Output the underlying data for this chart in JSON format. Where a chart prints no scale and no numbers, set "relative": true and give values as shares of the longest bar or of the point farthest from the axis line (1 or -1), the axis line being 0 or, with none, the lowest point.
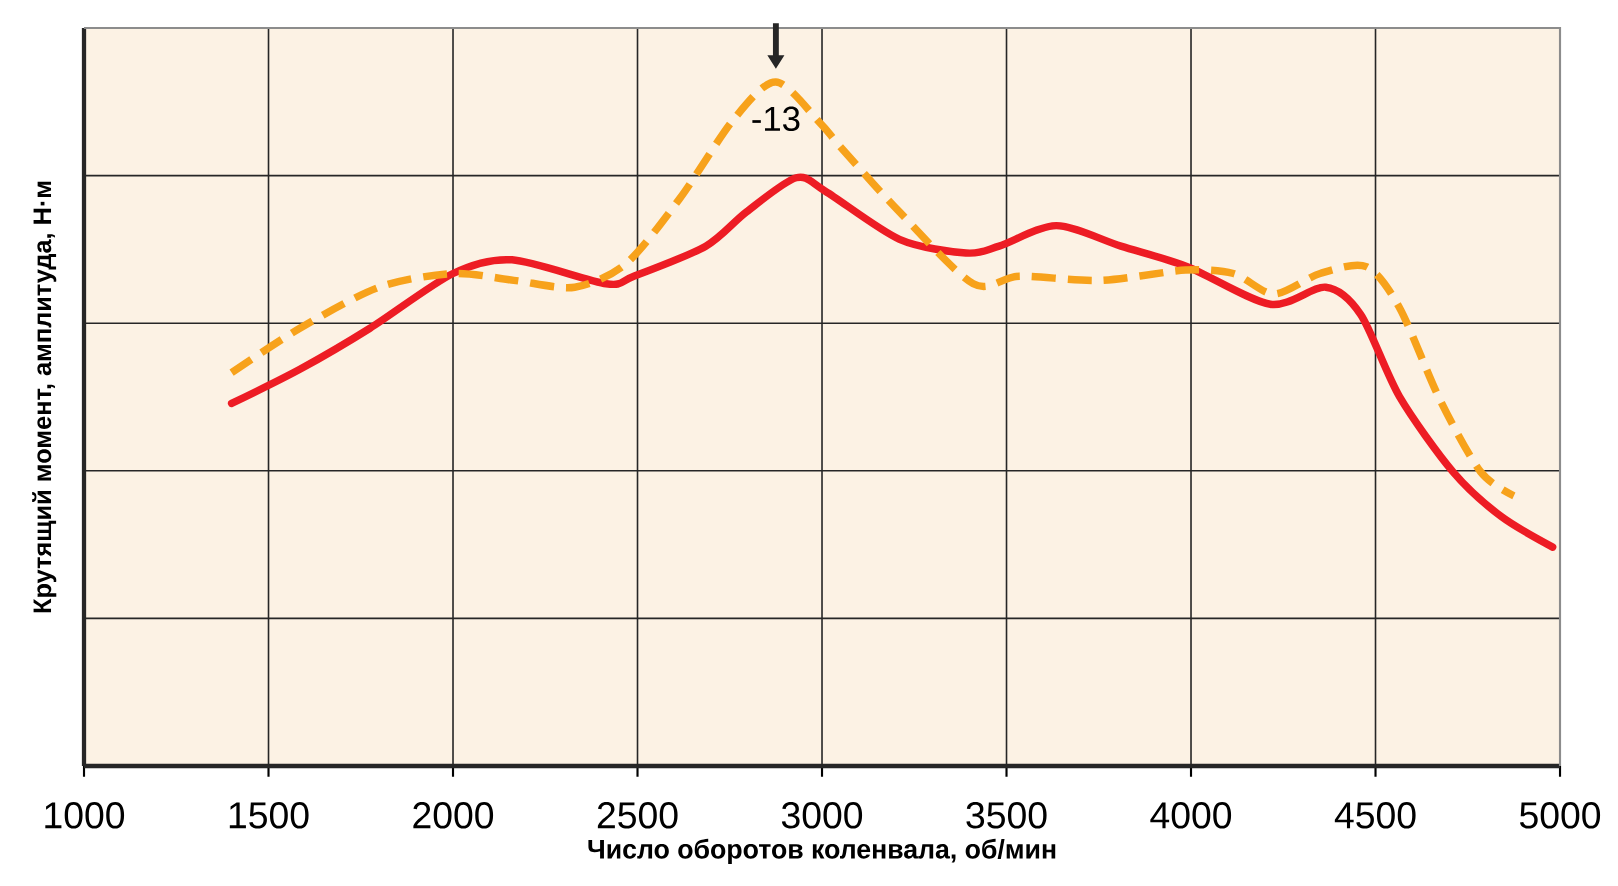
{
  "chart_data": {
    "type": "line",
    "relative": true,
    "xlabel": "Число оборотов коленвала, об/мин",
    "ylabel": "Крутящий момент, амплитуда, Н·м",
    "xlim": [
      1000,
      5000
    ],
    "xticks": [
      1000,
      1500,
      2000,
      2500,
      3000,
      3500,
      4000,
      4500,
      5000
    ],
    "grid": true,
    "tick_labels": "x",
    "marker": "none",
    "annotations": [
      {
        "text": "-13",
        "x": 2875,
        "y": 1.0
      }
    ],
    "series": [
      {
        "color": "#ed1c24",
        "line_style": "solid",
        "x": [
          1400,
          1585,
          1775,
          2000,
          2160,
          2415,
          2490,
          2685,
          2795,
          2930,
          3010,
          3210,
          3390,
          3480,
          3635,
          3810,
          3990,
          4215,
          4365,
          4460,
          4565,
          4710,
          4840,
          4980
        ],
        "values": [
          0.53,
          0.58,
          0.64,
          0.72,
          0.74,
          0.705,
          0.716,
          0.76,
          0.81,
          0.86,
          0.84,
          0.77,
          0.75,
          0.76,
          0.79,
          0.76,
          0.73,
          0.675,
          0.7,
          0.66,
          0.54,
          0.43,
          0.365,
          0.32
        ]
      },
      {
        "color": "#f7a21b",
        "line_style": "dashed",
        "x": [
          1400,
          1585,
          1800,
          2000,
          2165,
          2330,
          2470,
          2615,
          2760,
          2875,
          2995,
          3050,
          3210,
          3410,
          3535,
          3755,
          3985,
          4115,
          4225,
          4350,
          4475,
          4565,
          4675,
          4785,
          4875
        ],
        "values": [
          0.575,
          0.64,
          0.7,
          0.72,
          0.71,
          0.7,
          0.735,
          0.83,
          0.945,
          1.0,
          0.94,
          0.905,
          0.81,
          0.705,
          0.716,
          0.71,
          0.725,
          0.72,
          0.69,
          0.72,
          0.73,
          0.67,
          0.535,
          0.43,
          0.395
        ]
      }
    ]
  }
}
